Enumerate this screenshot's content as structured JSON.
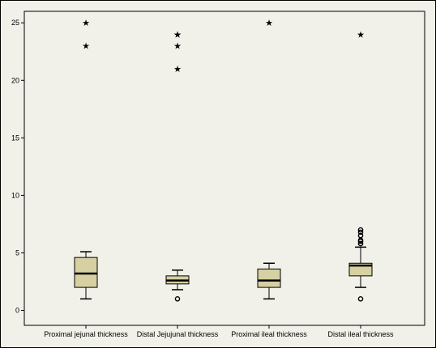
{
  "chart_data": {
    "type": "boxplot",
    "title": "",
    "xlabel": "",
    "ylabel": "",
    "ylim": [
      -1.3,
      26
    ],
    "yticks": [
      0,
      5,
      10,
      15,
      20,
      25
    ],
    "grid": false,
    "categories": [
      "Proximal jejunal thickness",
      "Distal Jejujunal thickness",
      "Proximal ileal thickness",
      "Distal ileal thickness"
    ],
    "boxes": [
      {
        "whisker_low": 1.0,
        "q1": 2.0,
        "median": 3.2,
        "q3": 4.6,
        "whisker_high": 5.1,
        "outliers": [],
        "extremes": [
          23,
          25
        ]
      },
      {
        "whisker_low": 1.8,
        "q1": 2.3,
        "median": 2.6,
        "q3": 3.0,
        "whisker_high": 3.5,
        "outliers": [
          1.0
        ],
        "extremes": [
          21,
          23,
          24,
          24
        ]
      },
      {
        "whisker_low": 1.0,
        "q1": 2.0,
        "median": 2.6,
        "q3": 3.6,
        "whisker_high": 4.1,
        "outliers": [],
        "extremes": [
          25
        ]
      },
      {
        "whisker_low": 2.0,
        "q1": 3.0,
        "median": 3.9,
        "q3": 4.1,
        "whisker_high": 5.5,
        "outliers": [
          1.0,
          5.8,
          6.0,
          6.1,
          6.5,
          6.8,
          7.0
        ],
        "extremes": [
          24
        ]
      }
    ],
    "colors": {
      "box_fill": "#d6d0a2",
      "plot_background": "#f1f1ea",
      "line": "#000000"
    }
  }
}
